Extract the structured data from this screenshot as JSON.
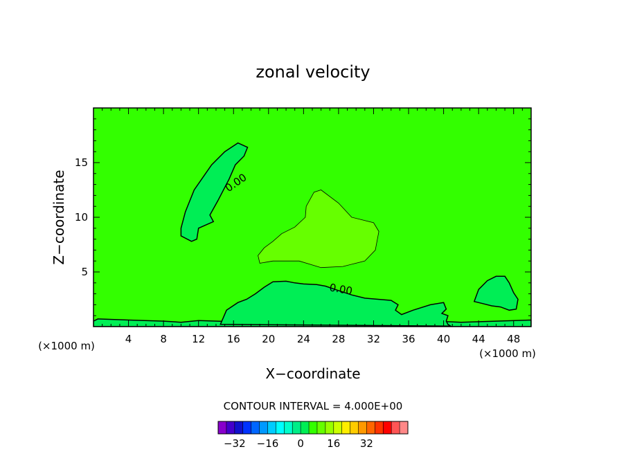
{
  "chart_data": {
    "type": "contour",
    "title": "zonal velocity",
    "xlabel": "X−coordinate",
    "ylabel": "Z−coordinate",
    "x_units": "(×1000 m)",
    "x_units_right": "(×1000 m)",
    "xlim": [
      0,
      50
    ],
    "ylim": [
      0,
      20
    ],
    "xticks": [
      4,
      8,
      12,
      16,
      20,
      24,
      28,
      32,
      36,
      40,
      44,
      48
    ],
    "yticks": [
      5,
      10,
      15
    ],
    "contour_interval_text": "CONTOUR INTERVAL = 4.000E+00",
    "contour_labels": [
      {
        "text": "0.00",
        "x": 16.5,
        "y": 12.9,
        "rotate": -35
      },
      {
        "text": "0.00",
        "x": 28.2,
        "y": 3.1,
        "rotate": 10
      }
    ],
    "background_color": "#33ff00",
    "regions": [
      {
        "level": 0,
        "color": "#00ee55",
        "points": [
          [
            12,
            9
          ],
          [
            11.8,
            8
          ],
          [
            11.2,
            7.8
          ],
          [
            10,
            8.3
          ],
          [
            10,
            9
          ],
          [
            10.5,
            10.5
          ],
          [
            11.5,
            12.5
          ],
          [
            13.5,
            14.8
          ],
          [
            15,
            16
          ],
          [
            16.5,
            16.8
          ],
          [
            17.6,
            16.4
          ],
          [
            17.2,
            15.6
          ],
          [
            16.2,
            14.8
          ],
          [
            15.5,
            13.5
          ],
          [
            14.2,
            11.5
          ],
          [
            13.3,
            10.2
          ],
          [
            13.7,
            9.6
          ]
        ]
      },
      {
        "level": 0,
        "color": "#00ee55",
        "points": [
          [
            0,
            0.5
          ],
          [
            0.5,
            0.7
          ],
          [
            4,
            0.6
          ],
          [
            8,
            0.5
          ],
          [
            10,
            0.4
          ],
          [
            12,
            0.55
          ],
          [
            16,
            0.45
          ],
          [
            20,
            0.35
          ],
          [
            22,
            0.4
          ],
          [
            30,
            0.6
          ],
          [
            36,
            0.6
          ],
          [
            42,
            0.4
          ],
          [
            50,
            0.6
          ],
          [
            50,
            0
          ],
          [
            0,
            0
          ]
        ]
      },
      {
        "level": 0,
        "color": "#00ee55",
        "points": [
          [
            14.5,
            0.2
          ],
          [
            15.2,
            1.5
          ],
          [
            16.5,
            2.2
          ],
          [
            17.5,
            2.5
          ],
          [
            18.5,
            3.0
          ],
          [
            19.5,
            3.6
          ],
          [
            20.5,
            4.1
          ],
          [
            22,
            4.15
          ],
          [
            23,
            4.0
          ],
          [
            24,
            3.9
          ],
          [
            25.5,
            3.85
          ],
          [
            26.5,
            3.7
          ],
          [
            28,
            3.3
          ],
          [
            29.5,
            2.9
          ],
          [
            31,
            2.6
          ],
          [
            32.5,
            2.5
          ],
          [
            34,
            2.4
          ],
          [
            34.8,
            2.0
          ],
          [
            34.5,
            1.5
          ],
          [
            35.2,
            1.1
          ],
          [
            36.5,
            1.5
          ],
          [
            38.5,
            2.0
          ],
          [
            40,
            2.2
          ],
          [
            40.3,
            1.6
          ],
          [
            39.8,
            1.2
          ],
          [
            40.5,
            1.0
          ],
          [
            40.3,
            0.5
          ],
          [
            40.5,
            0.2
          ],
          [
            40.8,
            0.05
          ]
        ]
      },
      {
        "level": 0,
        "color": "#00ee55",
        "points": [
          [
            43.5,
            2.3
          ],
          [
            44,
            3.4
          ],
          [
            45,
            4.2
          ],
          [
            46,
            4.6
          ],
          [
            47,
            4.6
          ],
          [
            47.5,
            4.0
          ],
          [
            48,
            3.1
          ],
          [
            48.5,
            2.5
          ],
          [
            48.3,
            1.6
          ],
          [
            47.5,
            1.5
          ],
          [
            46.5,
            1.8
          ],
          [
            45.5,
            1.9
          ],
          [
            44.5,
            2.1
          ]
        ]
      },
      {
        "level": 4,
        "color": "#66ff00",
        "points": [
          [
            18.8,
            6.5
          ],
          [
            19.5,
            7.2
          ],
          [
            20.5,
            7.8
          ],
          [
            21.5,
            8.5
          ],
          [
            23,
            9.1
          ],
          [
            24.2,
            10.0
          ],
          [
            24.3,
            11.0
          ],
          [
            25.2,
            12.3
          ],
          [
            26,
            12.5
          ],
          [
            28,
            11.3
          ],
          [
            29.5,
            10.0
          ],
          [
            32,
            9.5
          ],
          [
            32.6,
            8.7
          ],
          [
            32.2,
            7.0
          ],
          [
            31.0,
            6.0
          ],
          [
            28.5,
            5.5
          ],
          [
            26.0,
            5.4
          ],
          [
            23.5,
            6.0
          ],
          [
            20.5,
            6.0
          ],
          [
            19,
            5.8
          ]
        ]
      }
    ],
    "colorbar": {
      "colors": [
        "#8800cc",
        "#4400cc",
        "#1111cc",
        "#0033ff",
        "#0066ff",
        "#0099ff",
        "#00ccff",
        "#00ffff",
        "#00ffcc",
        "#00ee88",
        "#00ee55",
        "#33ff00",
        "#66ff00",
        "#99ff00",
        "#ccff00",
        "#ffee00",
        "#ffcc00",
        "#ff9900",
        "#ff6600",
        "#ff3300",
        "#ff0000",
        "#ff5555",
        "#ff8888"
      ],
      "tick_labels": [
        "−32",
        "−16",
        "0",
        "16",
        "32"
      ]
    }
  }
}
